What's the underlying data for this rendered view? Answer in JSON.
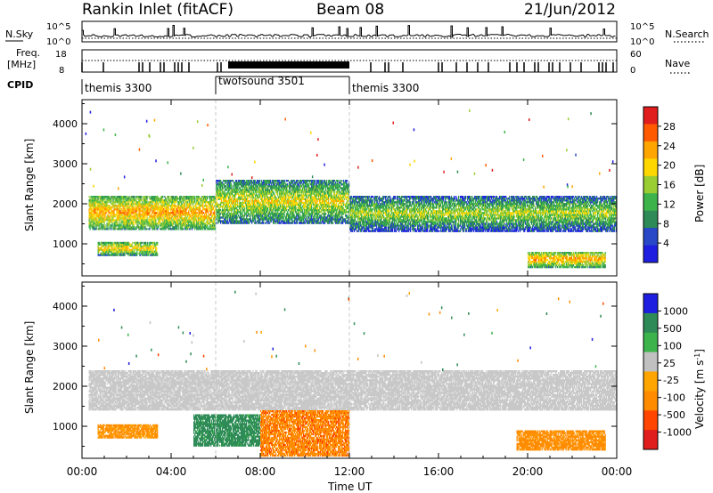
{
  "header": {
    "title": "Rankin Inlet (fitACF)",
    "beam": "Beam 08",
    "date": "21/Jun/2012"
  },
  "noise_panel": {
    "left_label": "N.Sky",
    "left_ticks": [
      "10^5",
      "10^0"
    ],
    "right_label": "N.Search",
    "right_ticks": [
      "10^5",
      "10^0"
    ],
    "right_legend_marker": "dotted"
  },
  "freq_panel": {
    "left_label_1": "Freq.",
    "left_label_2": "[MHz]",
    "left_ticks": [
      "18",
      "8"
    ],
    "right_label": "Nave",
    "right_ticks": [
      "60",
      "0"
    ],
    "right_legend_marker": "dotted"
  },
  "cpid_panel": {
    "label": "CPID",
    "segments": [
      {
        "name": "themis 3300",
        "start_h": 0,
        "end_h": 6
      },
      {
        "name": "twofsound 3501",
        "start_h": 6,
        "end_h": 12
      },
      {
        "name": "themis 3300",
        "start_h": 12,
        "end_h": 24
      }
    ]
  },
  "x_axis": {
    "title": "Time UT",
    "ticks": [
      "00:00",
      "04:00",
      "08:00",
      "12:00",
      "16:00",
      "20:00",
      "00:00"
    ]
  },
  "colors": {
    "power": [
      "#1e1ee0",
      "#2848c8",
      "#2e8b57",
      "#3cb44b",
      "#9acd32",
      "#ffd700",
      "#ffa500",
      "#ff5a00",
      "#e01e1e"
    ],
    "velocity": [
      "#1e1ee0",
      "#2e8b57",
      "#3cb44b",
      "#c0c0c0",
      "#ffa500",
      "#ff8c00",
      "#ff4500",
      "#e01e1e"
    ],
    "velocity_ground": "#c8c8c8"
  },
  "chart_data": [
    {
      "type": "heatmap",
      "name": "power",
      "ylabel": "Slant Range [km]",
      "xlabel": "",
      "xlim": [
        0,
        24
      ],
      "ylim": [
        200,
        4600
      ],
      "y_ticks": [
        1000,
        2000,
        3000,
        4000
      ],
      "x_ticks": [
        "00:00",
        "04:00",
        "08:00",
        "12:00",
        "16:00",
        "20:00",
        "00:00"
      ],
      "colorbar": {
        "label": "Power [dB]",
        "tick_labels": [
          "28",
          "24",
          "20",
          "16",
          "12",
          "8",
          "4"
        ],
        "range": [
          0,
          30
        ]
      },
      "bands": [
        {
          "t0": 0.3,
          "t1": 6.0,
          "r0": 1350,
          "r1": 2200,
          "value": 22
        },
        {
          "t0": 0.7,
          "t1": 3.4,
          "r0": 700,
          "r1": 1050,
          "value": 20
        },
        {
          "t0": 6.0,
          "t1": 12.0,
          "r0": 1500,
          "r1": 2600,
          "value": 18
        },
        {
          "t0": 12.0,
          "t1": 24.0,
          "r0": 1300,
          "r1": 2200,
          "value": 16
        },
        {
          "t0": 20.0,
          "t1": 23.5,
          "r0": 400,
          "r1": 800,
          "value": 22
        }
      ]
    },
    {
      "type": "heatmap",
      "name": "velocity",
      "ylabel": "Slant Range [km]",
      "xlabel": "Time UT",
      "xlim": [
        0,
        24
      ],
      "ylim": [
        200,
        4600
      ],
      "y_ticks": [
        1000,
        2000,
        3000,
        4000
      ],
      "x_ticks": [
        "00:00",
        "04:00",
        "08:00",
        "12:00",
        "16:00",
        "20:00",
        "00:00"
      ],
      "colorbar": {
        "label": "Velocity [m s^-1]",
        "tick_labels": [
          "1000",
          "500",
          "100",
          "25",
          "-25",
          "-100",
          "-500",
          "-1000"
        ],
        "range": [
          -1000,
          1000
        ]
      },
      "bands": [
        {
          "t0": 0.3,
          "t1": 24.0,
          "r0": 1400,
          "r1": 2400,
          "value": 0
        },
        {
          "t0": 0.7,
          "t1": 3.4,
          "r0": 700,
          "r1": 1050,
          "value": -120
        },
        {
          "t0": 5.0,
          "t1": 8.0,
          "r0": 500,
          "r1": 1300,
          "value": 150
        },
        {
          "t0": 8.0,
          "t1": 12.0,
          "r0": 250,
          "r1": 1400,
          "value": -400
        },
        {
          "t0": 19.5,
          "t1": 23.5,
          "r0": 400,
          "r1": 900,
          "value": -150
        }
      ]
    }
  ]
}
